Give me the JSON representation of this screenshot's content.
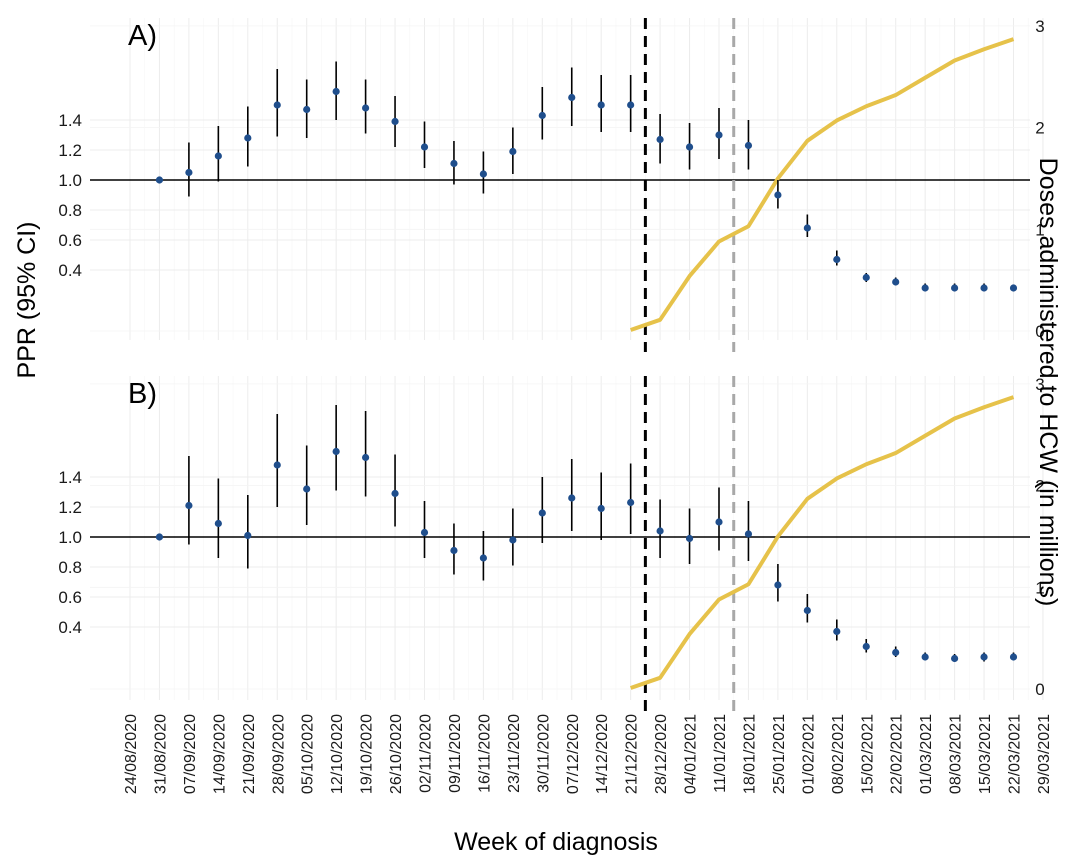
{
  "chart_data": {
    "type": "line",
    "x": [
      "24/08/2020",
      "31/08/2020",
      "07/09/2020",
      "14/09/2020",
      "21/09/2020",
      "28/09/2020",
      "05/10/2020",
      "12/10/2020",
      "19/10/2020",
      "26/10/2020",
      "02/11/2020",
      "09/11/2020",
      "16/11/2020",
      "23/11/2020",
      "30/11/2020",
      "07/12/2020",
      "14/12/2020",
      "21/12/2020",
      "28/12/2020",
      "04/01/2021",
      "11/01/2021",
      "18/01/2021",
      "25/01/2021",
      "01/02/2021",
      "08/02/2021",
      "15/02/2021",
      "22/02/2021",
      "01/03/2021",
      "08/03/2021",
      "15/03/2021",
      "22/03/2021",
      "29/03/2021"
    ],
    "xlabel": "Week of diagnosis",
    "ylabel": "PPR (95% CI)",
    "y2label": "Doses administered to HCW (in millions)",
    "y_ticks": [
      "0.4",
      "0.6",
      "0.8",
      "1.0",
      "1.2",
      "1.4"
    ],
    "y2_ticks": [
      "0",
      "1",
      "2",
      "3"
    ],
    "reference_line": 1.0,
    "vertical_lines": [
      {
        "between": [
          "21/12/2020",
          "28/12/2020"
        ],
        "color": "#000000",
        "style": "dashed"
      },
      {
        "between": [
          "11/01/2021",
          "18/01/2021"
        ],
        "color": "#a8a8a8",
        "style": "dashed"
      }
    ],
    "grid": true,
    "point_color": "#1f4e8c",
    "doses_color": "#e6c24a",
    "panels": [
      {
        "label": "A)",
        "ppr": [
          {
            "x": "31/08/2020",
            "est": 1.0,
            "lo": 1.0,
            "hi": 1.0
          },
          {
            "x": "07/09/2020",
            "est": 1.05,
            "lo": 0.89,
            "hi": 1.25
          },
          {
            "x": "14/09/2020",
            "est": 1.16,
            "lo": 0.99,
            "hi": 1.36
          },
          {
            "x": "21/09/2020",
            "est": 1.28,
            "lo": 1.09,
            "hi": 1.49
          },
          {
            "x": "28/09/2020",
            "est": 1.5,
            "lo": 1.29,
            "hi": 1.74
          },
          {
            "x": "05/10/2020",
            "est": 1.47,
            "lo": 1.28,
            "hi": 1.67
          },
          {
            "x": "12/10/2020",
            "est": 1.59,
            "lo": 1.4,
            "hi": 1.79
          },
          {
            "x": "19/10/2020",
            "est": 1.48,
            "lo": 1.31,
            "hi": 1.67
          },
          {
            "x": "26/10/2020",
            "est": 1.39,
            "lo": 1.22,
            "hi": 1.56
          },
          {
            "x": "02/11/2020",
            "est": 1.22,
            "lo": 1.08,
            "hi": 1.39
          },
          {
            "x": "09/11/2020",
            "est": 1.11,
            "lo": 0.97,
            "hi": 1.26
          },
          {
            "x": "16/11/2020",
            "est": 1.04,
            "lo": 0.91,
            "hi": 1.19
          },
          {
            "x": "23/11/2020",
            "est": 1.19,
            "lo": 1.04,
            "hi": 1.35
          },
          {
            "x": "30/11/2020",
            "est": 1.43,
            "lo": 1.27,
            "hi": 1.62
          },
          {
            "x": "07/12/2020",
            "est": 1.55,
            "lo": 1.36,
            "hi": 1.75
          },
          {
            "x": "14/12/2020",
            "est": 1.5,
            "lo": 1.32,
            "hi": 1.7
          },
          {
            "x": "21/12/2020",
            "est": 1.5,
            "lo": 1.32,
            "hi": 1.7
          },
          {
            "x": "28/12/2020",
            "est": 1.27,
            "lo": 1.11,
            "hi": 1.44
          },
          {
            "x": "04/01/2021",
            "est": 1.22,
            "lo": 1.07,
            "hi": 1.38
          },
          {
            "x": "11/01/2021",
            "est": 1.3,
            "lo": 1.14,
            "hi": 1.48
          },
          {
            "x": "18/01/2021",
            "est": 1.23,
            "lo": 1.07,
            "hi": 1.4
          },
          {
            "x": "25/01/2021",
            "est": 0.9,
            "lo": 0.81,
            "hi": 1.0
          },
          {
            "x": "01/02/2021",
            "est": 0.68,
            "lo": 0.62,
            "hi": 0.77
          },
          {
            "x": "08/02/2021",
            "est": 0.47,
            "lo": 0.43,
            "hi": 0.53
          },
          {
            "x": "15/02/2021",
            "est": 0.35,
            "lo": 0.32,
            "hi": 0.38
          },
          {
            "x": "22/02/2021",
            "est": 0.32,
            "lo": 0.3,
            "hi": 0.35
          },
          {
            "x": "01/03/2021",
            "est": 0.28,
            "lo": 0.26,
            "hi": 0.31
          },
          {
            "x": "08/03/2021",
            "est": 0.28,
            "lo": 0.26,
            "hi": 0.31
          },
          {
            "x": "15/03/2021",
            "est": 0.28,
            "lo": 0.26,
            "hi": 0.31
          },
          {
            "x": "22/03/2021",
            "est": 0.28,
            "lo": 0.26,
            "hi": 0.3
          }
        ],
        "doses": [
          {
            "x": "21/12/2020",
            "y": 0.01
          },
          {
            "x": "28/12/2020",
            "y": 0.11
          },
          {
            "x": "04/01/2021",
            "y": 0.54
          },
          {
            "x": "11/01/2021",
            "y": 0.88
          },
          {
            "x": "18/01/2021",
            "y": 1.03
          },
          {
            "x": "25/01/2021",
            "y": 1.5
          },
          {
            "x": "01/02/2021",
            "y": 1.87
          },
          {
            "x": "08/02/2021",
            "y": 2.07
          },
          {
            "x": "15/02/2021",
            "y": 2.21
          },
          {
            "x": "22/02/2021",
            "y": 2.32
          },
          {
            "x": "01/03/2021",
            "y": 2.49
          },
          {
            "x": "08/03/2021",
            "y": 2.66
          },
          {
            "x": "15/03/2021",
            "y": 2.77
          },
          {
            "x": "22/03/2021",
            "y": 2.87
          }
        ]
      },
      {
        "label": "B)",
        "ppr": [
          {
            "x": "31/08/2020",
            "est": 1.0,
            "lo": 1.0,
            "hi": 1.0
          },
          {
            "x": "07/09/2020",
            "est": 1.21,
            "lo": 0.95,
            "hi": 1.54
          },
          {
            "x": "14/09/2020",
            "est": 1.09,
            "lo": 0.86,
            "hi": 1.39
          },
          {
            "x": "21/09/2020",
            "est": 1.01,
            "lo": 0.79,
            "hi": 1.28
          },
          {
            "x": "28/09/2020",
            "est": 1.48,
            "lo": 1.2,
            "hi": 1.82
          },
          {
            "x": "05/10/2020",
            "est": 1.32,
            "lo": 1.08,
            "hi": 1.61
          },
          {
            "x": "12/10/2020",
            "est": 1.57,
            "lo": 1.31,
            "hi": 1.88
          },
          {
            "x": "19/10/2020",
            "est": 1.53,
            "lo": 1.27,
            "hi": 1.84
          },
          {
            "x": "26/10/2020",
            "est": 1.29,
            "lo": 1.07,
            "hi": 1.55
          },
          {
            "x": "02/11/2020",
            "est": 1.03,
            "lo": 0.86,
            "hi": 1.24
          },
          {
            "x": "09/11/2020",
            "est": 0.91,
            "lo": 0.75,
            "hi": 1.09
          },
          {
            "x": "16/11/2020",
            "est": 0.86,
            "lo": 0.71,
            "hi": 1.04
          },
          {
            "x": "23/11/2020",
            "est": 0.98,
            "lo": 0.81,
            "hi": 1.19
          },
          {
            "x": "30/11/2020",
            "est": 1.16,
            "lo": 0.96,
            "hi": 1.4
          },
          {
            "x": "07/12/2020",
            "est": 1.26,
            "lo": 1.04,
            "hi": 1.52
          },
          {
            "x": "14/12/2020",
            "est": 1.19,
            "lo": 0.98,
            "hi": 1.43
          },
          {
            "x": "21/12/2020",
            "est": 1.23,
            "lo": 1.02,
            "hi": 1.49
          },
          {
            "x": "28/12/2020",
            "est": 1.04,
            "lo": 0.86,
            "hi": 1.25
          },
          {
            "x": "04/01/2021",
            "est": 0.99,
            "lo": 0.82,
            "hi": 1.19
          },
          {
            "x": "11/01/2021",
            "est": 1.1,
            "lo": 0.91,
            "hi": 1.33
          },
          {
            "x": "18/01/2021",
            "est": 1.02,
            "lo": 0.84,
            "hi": 1.24
          },
          {
            "x": "25/01/2021",
            "est": 0.68,
            "lo": 0.57,
            "hi": 0.82
          },
          {
            "x": "01/02/2021",
            "est": 0.51,
            "lo": 0.43,
            "hi": 0.62
          },
          {
            "x": "08/02/2021",
            "est": 0.37,
            "lo": 0.31,
            "hi": 0.45
          },
          {
            "x": "15/02/2021",
            "est": 0.27,
            "lo": 0.23,
            "hi": 0.32
          },
          {
            "x": "22/02/2021",
            "est": 0.23,
            "lo": 0.2,
            "hi": 0.27
          },
          {
            "x": "01/03/2021",
            "est": 0.2,
            "lo": 0.18,
            "hi": 0.23
          },
          {
            "x": "08/03/2021",
            "est": 0.19,
            "lo": 0.17,
            "hi": 0.22
          },
          {
            "x": "15/03/2021",
            "est": 0.2,
            "lo": 0.17,
            "hi": 0.23
          },
          {
            "x": "22/03/2021",
            "est": 0.2,
            "lo": 0.18,
            "hi": 0.23
          }
        ],
        "doses": [
          {
            "x": "21/12/2020",
            "y": 0.01
          },
          {
            "x": "28/12/2020",
            "y": 0.11
          },
          {
            "x": "04/01/2021",
            "y": 0.54
          },
          {
            "x": "11/01/2021",
            "y": 0.88
          },
          {
            "x": "18/01/2021",
            "y": 1.03
          },
          {
            "x": "25/01/2021",
            "y": 1.5
          },
          {
            "x": "01/02/2021",
            "y": 1.87
          },
          {
            "x": "08/02/2021",
            "y": 2.07
          },
          {
            "x": "15/02/2021",
            "y": 2.21
          },
          {
            "x": "22/02/2021",
            "y": 2.32
          },
          {
            "x": "01/03/2021",
            "y": 2.49
          },
          {
            "x": "08/03/2021",
            "y": 2.66
          },
          {
            "x": "15/03/2021",
            "y": 2.77
          },
          {
            "x": "22/03/2021",
            "y": 2.87
          }
        ]
      }
    ]
  }
}
